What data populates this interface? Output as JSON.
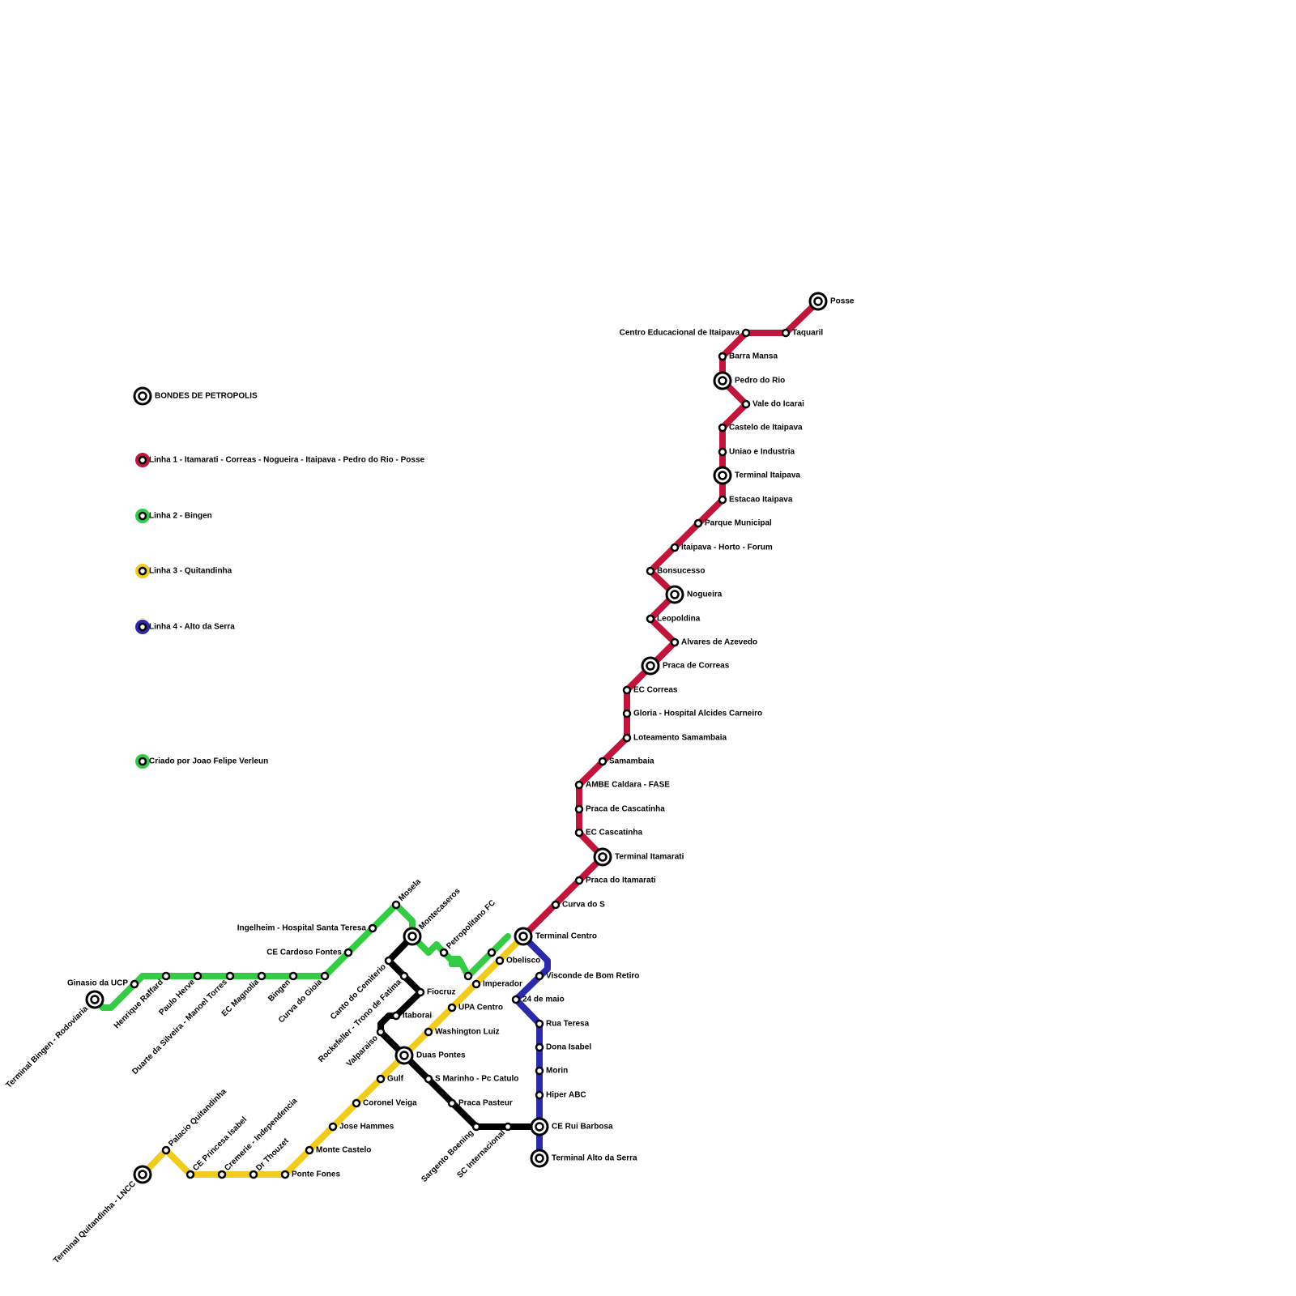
{
  "legend": [
    {
      "label": "BONDES DE PETROPOLIS"
    },
    {
      "label": "Linha 1 - Itamarati - Correas - Nogueira - Itaipava - Pedro do Rio - Posse"
    },
    {
      "label": "Linha 2 - Bingen"
    },
    {
      "label": "Linha 3 - Quitandinha"
    },
    {
      "label": "Linha 4 - Alto da Serra"
    },
    {
      "label": "Criado por Joao Felipe Verleun"
    }
  ],
  "stations": [
    {
      "name": "Posse"
    },
    {
      "name": "Taquaril"
    },
    {
      "name": "Centro Educacional de Itaipava"
    },
    {
      "name": "Barra Mansa"
    },
    {
      "name": "Pedro do Rio"
    },
    {
      "name": "Vale do Icarai"
    },
    {
      "name": "Castelo de Itaipava"
    },
    {
      "name": "Uniao e Industria"
    },
    {
      "name": "Terminal Itaipava"
    },
    {
      "name": "Estacao Itaipava"
    },
    {
      "name": "Parque Municipal"
    },
    {
      "name": "Itaipava - Horto - Forum"
    },
    {
      "name": "Bonsucesso"
    },
    {
      "name": "Nogueira"
    },
    {
      "name": "Leopoldina"
    },
    {
      "name": "Alvares de Azevedo"
    },
    {
      "name": "Praca de Correas"
    },
    {
      "name": "EC Correas"
    },
    {
      "name": "Gloria - Hospital Alcides Carneiro"
    },
    {
      "name": "Loteamento Samambaia"
    },
    {
      "name": "Samambaia"
    },
    {
      "name": "AMBE Caldara - FASE"
    },
    {
      "name": "Praca de Cascatinha"
    },
    {
      "name": "EC Cascatinha"
    },
    {
      "name": "Terminal Itamarati"
    },
    {
      "name": "Praca do Itamarati"
    },
    {
      "name": "Curva do S"
    },
    {
      "name": "Terminal Centro"
    },
    {
      "name": "Visconde de Bom Retiro"
    },
    {
      "name": "24 de maio"
    },
    {
      "name": "Rua Teresa"
    },
    {
      "name": "Dona Isabel"
    },
    {
      "name": "Morin"
    },
    {
      "name": "Hiper ABC"
    },
    {
      "name": "CE Rui Barbosa"
    },
    {
      "name": "Terminal Alto da Serra"
    },
    {
      "name": "SC Internacional"
    },
    {
      "name": "Sargento Boening"
    },
    {
      "name": "Praca Pasteur"
    },
    {
      "name": "S Marinho - Pc Catulo"
    },
    {
      "name": "Duas Pontes"
    },
    {
      "name": "Valparaiso"
    },
    {
      "name": "Itaborai"
    },
    {
      "name": "Fiocruz"
    },
    {
      "name": "Rockefeller - Trono de Fatima"
    },
    {
      "name": "Canto do Cemiterio"
    },
    {
      "name": "Montecaseros"
    },
    {
      "name": "Mosela"
    },
    {
      "name": "Ingelheim - Hospital Santa Teresa"
    },
    {
      "name": "CE Cardoso Fontes"
    },
    {
      "name": "Curva do Gioia"
    },
    {
      "name": "Bingen"
    },
    {
      "name": "EC Magnolia"
    },
    {
      "name": "Duarte da Silveira - Manoel Torres"
    },
    {
      "name": "Paulo Herve"
    },
    {
      "name": "Henrique Raffard"
    },
    {
      "name": "Ginasio da UCP"
    },
    {
      "name": "Terminal Bingen - Rodoviaria"
    },
    {
      "name": "Petropolitano FC"
    },
    {
      "name": "Imperador"
    },
    {
      "name": "Obelisco"
    },
    {
      "name": "UPA Centro"
    },
    {
      "name": "Washington Luiz"
    },
    {
      "name": "Gulf"
    },
    {
      "name": "Coronel Veiga"
    },
    {
      "name": "Jose Hammes"
    },
    {
      "name": "Monte Castelo"
    },
    {
      "name": "Ponte Fones"
    },
    {
      "name": "Dr Thouzet"
    },
    {
      "name": "Cremerie - Independencia"
    },
    {
      "name": "CE Princesa Isabel"
    },
    {
      "name": "Palacio Quitandinha"
    },
    {
      "name": "Terminal Quitandinha - LNCC"
    }
  ]
}
